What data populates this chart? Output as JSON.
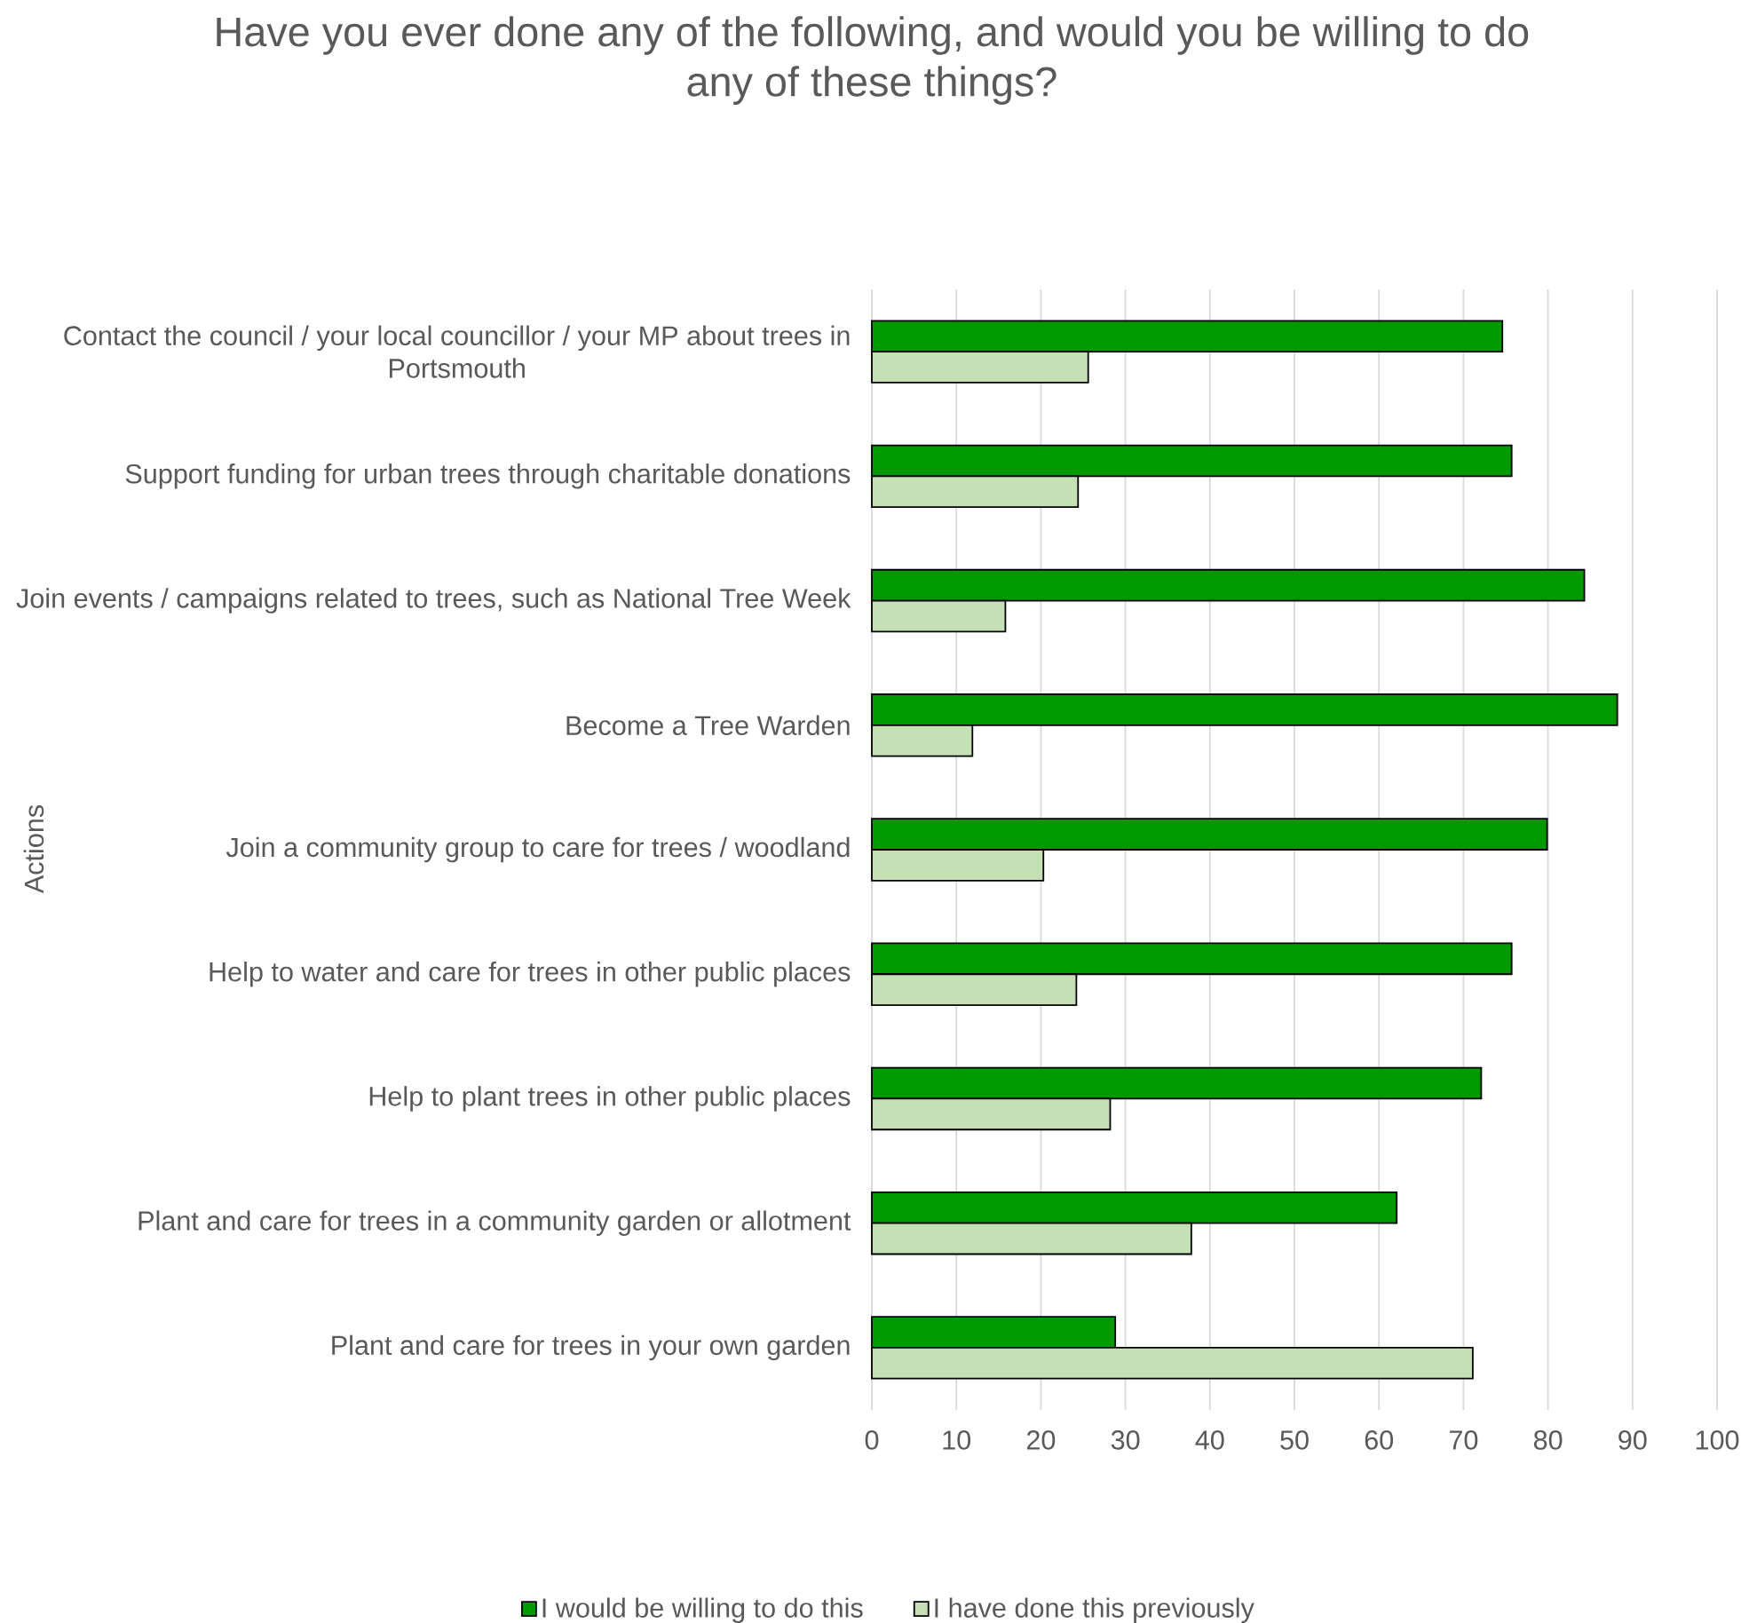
{
  "chart_data": {
    "type": "bar",
    "orientation": "horizontal",
    "title": "Have you ever done any of the following, and would you be willing to do any of these things?",
    "ylabel": "Actions",
    "categories": [
      "Contact the council / your local councillor / your MP about trees in Portsmouth",
      "Support funding for urban trees through charitable donations",
      "Join events / campaigns related to trees, such as National Tree Week",
      "Become a Tree Warden",
      "Join a community group to care for trees / woodland",
      "Help to water and care for trees in other public places",
      "Help to plant trees in other public places",
      "Plant and care for trees in a community garden or allotment",
      "Plant and care for trees in your own garden"
    ],
    "series": [
      {
        "name": "I would be willing to do this",
        "color": "#009900",
        "values": [
          74.6,
          75.7,
          84.3,
          88.2,
          79.9,
          75.7,
          72.1,
          62.1,
          28.8
        ]
      },
      {
        "name": "I have done this previously",
        "color": "#c5e0b4",
        "values": [
          25.6,
          24.4,
          15.8,
          11.9,
          20.3,
          24.2,
          28.2,
          37.8,
          71.1
        ]
      }
    ],
    "xlim": [
      0,
      100
    ],
    "xticks": [
      0,
      10,
      20,
      30,
      40,
      50,
      60,
      70,
      80,
      90,
      100
    ],
    "grid": "x",
    "legend": "bottom"
  }
}
